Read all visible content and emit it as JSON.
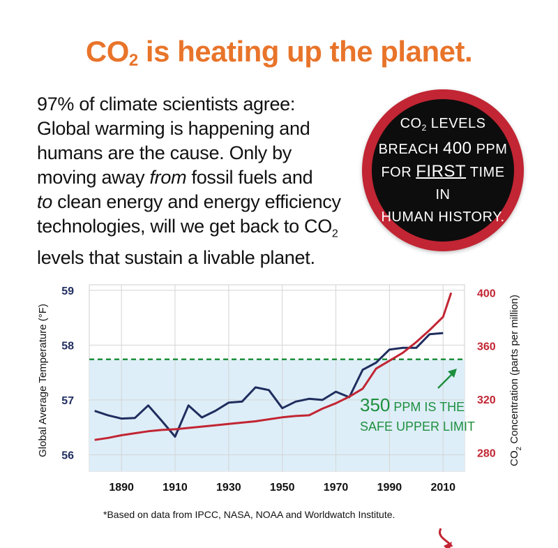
{
  "title": {
    "main_pre": "CO",
    "sub": "2",
    "main_post": " is heating up the planet."
  },
  "body_text": {
    "lines": [
      "97% of climate scientists agree:",
      "Global warming is happening and",
      "humans are the cause. Only by"
    ],
    "line4_pre": "moving away ",
    "line4_em": "from",
    "line4_post": " fossil fuels and",
    "line5_em": "to",
    "line5_post": " clean energy and energy efficiency",
    "line6": "technologies, will we get back to CO",
    "line6_sub": "2",
    "line7": "levels that sustain a livable planet."
  },
  "badge": {
    "line1_pre": "CO",
    "line1_sub": "2",
    "line1_post": " LEVELS",
    "line2_pre": "BREACH ",
    "line2_big": "400",
    "line2_post": " PPM",
    "line3_pre": "FOR ",
    "line3_big": "FIRST",
    "line3_post": " TIME IN",
    "line4": "HUMAN HISTORY.",
    "color_ring": "#c22533",
    "color_fill": "#0d0d0d"
  },
  "annotation": {
    "line1_big": "350",
    "line1_post": " PPM IS THE",
    "line2": "SAFE UPPER LIMIT",
    "color": "#1e8f3e"
  },
  "footnote": "*Based on data from IPCC, NASA, NOAA and Worldwatch Institute.",
  "chart_data": {
    "type": "line",
    "x_ticks": [
      1890,
      1910,
      1930,
      1950,
      1970,
      1990,
      2010
    ],
    "xlim": [
      1878,
      2018
    ],
    "y_left": {
      "label": "Global Average Temperature (°F)",
      "ticks": [
        56,
        57,
        58,
        59
      ],
      "ylim": [
        55.7,
        59.1
      ],
      "color": "#1f2d5e"
    },
    "y_right": {
      "label_pre": "CO",
      "label_sub": "2",
      "label_post": " Concentration (parts per million)",
      "ticks": [
        280,
        320,
        360,
        400
      ],
      "ylim": [
        266,
        406
      ],
      "color": "#c22533"
    },
    "safe_limit_ppm": 350,
    "safe_zone_color": "#ddeef8",
    "series": [
      {
        "axis": "left",
        "color": "#1f2d5e",
        "x": [
          1880,
          1885,
          1890,
          1895,
          1900,
          1905,
          1910,
          1915,
          1920,
          1925,
          1930,
          1935,
          1940,
          1945,
          1950,
          1955,
          1960,
          1965,
          1970,
          1975,
          1980,
          1985,
          1990,
          1995,
          2000,
          2005,
          2010
        ],
        "y": [
          56.8,
          56.72,
          56.66,
          56.67,
          56.9,
          56.62,
          56.33,
          56.9,
          56.68,
          56.8,
          56.95,
          56.97,
          57.23,
          57.18,
          56.85,
          56.97,
          57.02,
          57.0,
          57.15,
          57.05,
          57.55,
          57.68,
          57.92,
          57.95,
          57.95,
          58.2,
          58.22
        ]
      },
      {
        "axis": "right",
        "color": "#c22533",
        "x": [
          1880,
          1885,
          1890,
          1895,
          1900,
          1905,
          1910,
          1915,
          1920,
          1925,
          1930,
          1935,
          1940,
          1945,
          1950,
          1955,
          1960,
          1965,
          1970,
          1975,
          1980,
          1985,
          1990,
          1995,
          2000,
          2005,
          2010,
          2013
        ],
        "y": [
          289.5,
          291,
          293,
          294.5,
          296,
          297,
          297.5,
          298.5,
          299.5,
          300.5,
          301.5,
          302.5,
          303.5,
          305,
          306.5,
          307.5,
          308,
          313,
          317,
          322,
          328,
          343,
          349,
          355,
          363,
          372,
          382,
          400
        ]
      }
    ]
  }
}
